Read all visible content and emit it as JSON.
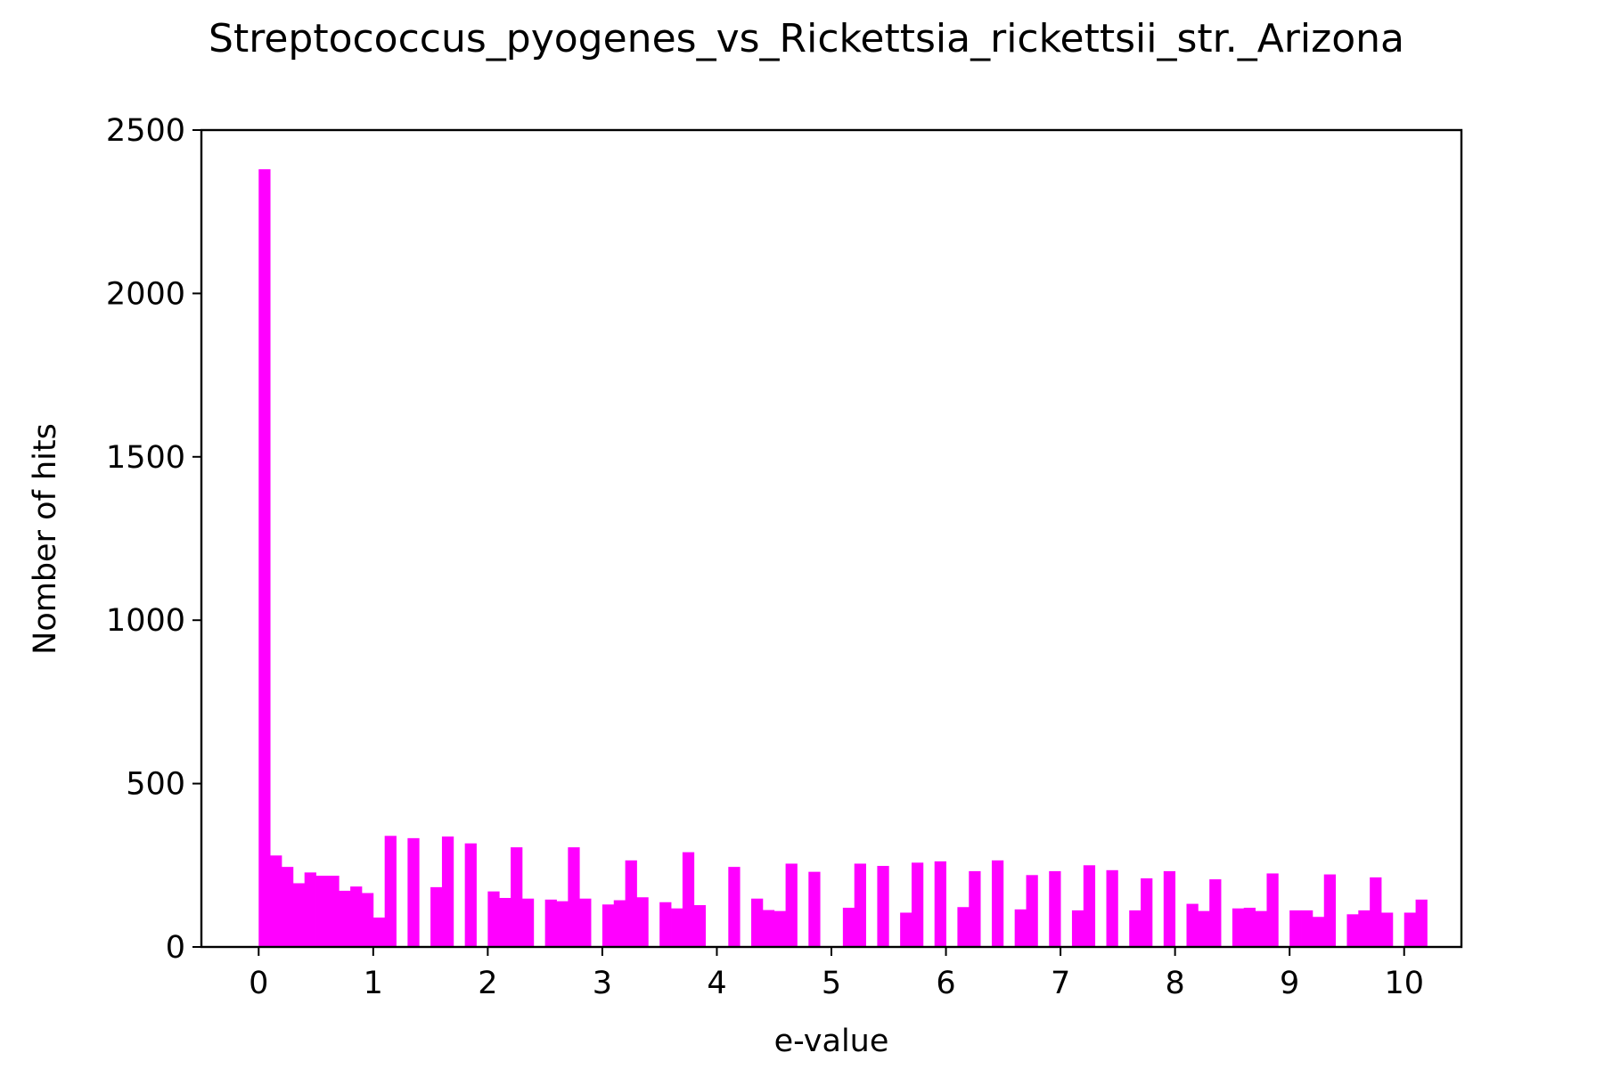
{
  "chart_data": {
    "type": "bar",
    "title": "Streptococcus_pyogenes_vs_Rickettsia_rickettsii_str._Arizona",
    "xlabel": "e-value",
    "ylabel": "Nomber of hits",
    "xlim": [
      -0.5,
      10.5
    ],
    "ylim": [
      0,
      2500
    ],
    "xticks": [
      "0",
      "1",
      "2",
      "3",
      "4",
      "5",
      "6",
      "7",
      "8",
      "9",
      "10"
    ],
    "yticks": [
      "0",
      "500",
      "1000",
      "1500",
      "2000",
      "2500"
    ],
    "bar_color": "#ff00ff",
    "bin_width": 0.1,
    "bin_start": 0,
    "grid": false,
    "values": [
      2380,
      280,
      245,
      195,
      228,
      218,
      218,
      172,
      185,
      165,
      90,
      340,
      0,
      333,
      0,
      183,
      338,
      0,
      317,
      0,
      170,
      150,
      305,
      148,
      0,
      145,
      140,
      305,
      148,
      0,
      130,
      143,
      265,
      152,
      0,
      137,
      118,
      290,
      128,
      0,
      0,
      245,
      0,
      148,
      113,
      110,
      255,
      0,
      230,
      0,
      0,
      120,
      255,
      0,
      248,
      0,
      105,
      258,
      0,
      262,
      0,
      122,
      232,
      0,
      265,
      0,
      115,
      220,
      0,
      232,
      0,
      112,
      250,
      0,
      235,
      0,
      112,
      210,
      0,
      232,
      0,
      132,
      110,
      207,
      0,
      118,
      120,
      110,
      225,
      0,
      112,
      112,
      92,
      222,
      0,
      100,
      112,
      213,
      105,
      0,
      105,
      145
    ]
  }
}
